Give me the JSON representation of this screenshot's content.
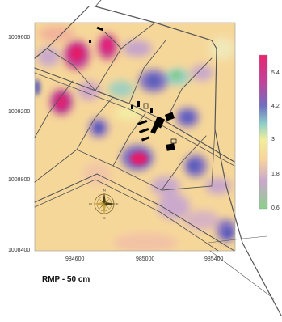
{
  "map": {
    "caption": "RMP - 50 cm",
    "y_ticks": [
      "1009600",
      "1009200",
      "1008800",
      "1008400"
    ],
    "x_ticks": [
      "984600",
      "985000",
      "985400"
    ],
    "colorbar": {
      "labels": [
        "5.4",
        "4.2",
        "3",
        "1.8",
        "0.6"
      ],
      "colors": [
        "#e8256f",
        "#c0449a",
        "#6f6fc0",
        "#8fd0c8",
        "#f2ee9a",
        "#f7d49c",
        "#c9a8cc",
        "#8ccf8a"
      ]
    },
    "compass": {
      "north": "N",
      "south": "S",
      "east": "E",
      "west": "W"
    },
    "colors": {
      "base": "#f6d79a",
      "high": "#e21d6b",
      "mid_high": "#7a6cc4",
      "mid": "#8fd0c6",
      "low": "#c8a7cf",
      "very_low": "#88cc88",
      "road": "#555555",
      "buildings": "#000000"
    }
  }
}
